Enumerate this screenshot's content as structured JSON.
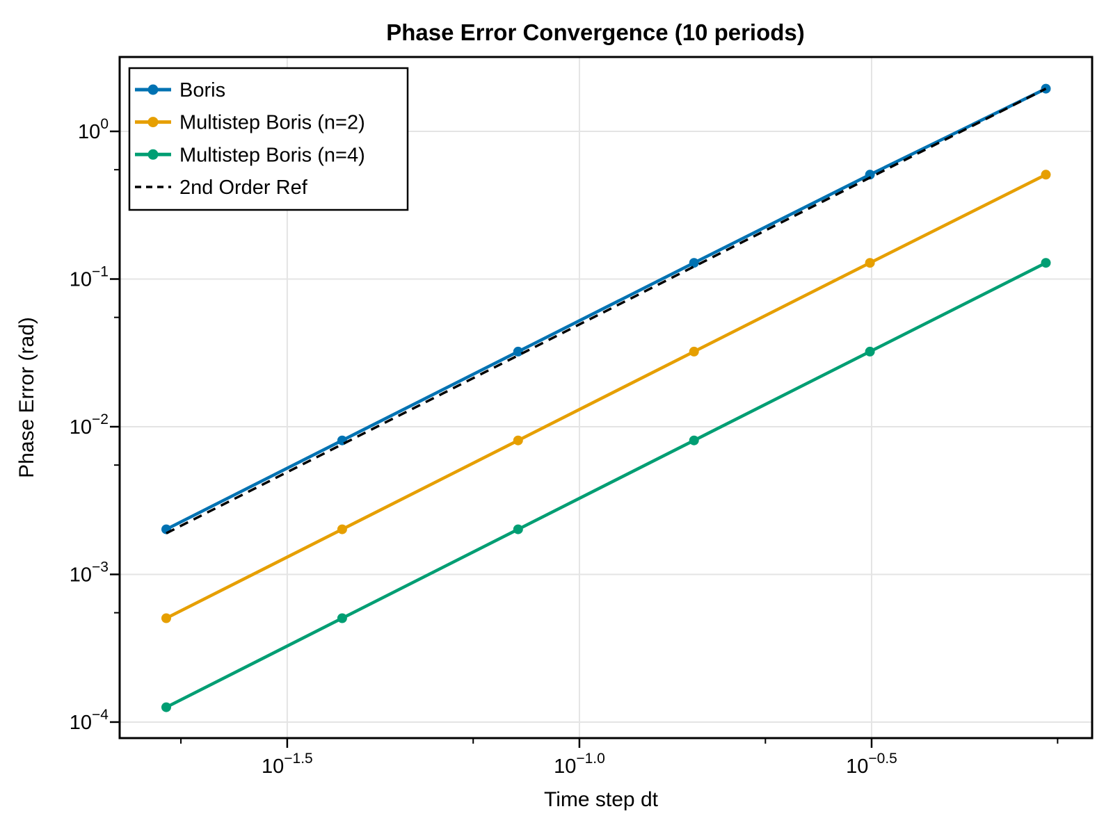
{
  "chart_data": {
    "type": "line",
    "title": "Phase Error Convergence (10 periods)",
    "xlabel": "Time step dt",
    "ylabel": "Phase Error (rad)",
    "x_scale": "log10",
    "y_scale": "log10",
    "xlim": [
      0.01634,
      0.754
    ],
    "ylim": [
      7.79e-05,
      3.189
    ],
    "grid": "major-only",
    "legend_position": "top-left",
    "background_color": "#ffffff",
    "gridline_color": "#e4e4e4",
    "x_ticks": [
      {
        "value": 0.0316228,
        "exponent": "-1.5"
      },
      {
        "value": 0.1,
        "exponent": "-1.0"
      },
      {
        "value": 0.316228,
        "exponent": "-0.5"
      }
    ],
    "x_minor_ticks": [
      0.0208,
      0.0658,
      0.2081,
      0.6581
    ],
    "y_ticks": [
      {
        "value": 1,
        "exponent": "0"
      },
      {
        "value": 0.1,
        "exponent": "-1"
      },
      {
        "value": 0.01,
        "exponent": "-2"
      },
      {
        "value": 0.001,
        "exponent": "-3"
      },
      {
        "value": 0.0001,
        "exponent": "-4"
      }
    ],
    "y_minor_ticks": [
      0.55,
      0.055,
      0.0055,
      0.00055
    ],
    "x": [
      0.019635,
      0.03927,
      0.07854,
      0.15708,
      0.31416,
      0.62832
    ],
    "series": [
      {
        "name": "Boris",
        "color": "#0072B2",
        "line": "solid",
        "marker": "circle",
        "values": [
          0.002019,
          0.008073,
          0.032268,
          0.12872,
          0.50914,
          1.9448
        ]
      },
      {
        "name": "Multistep Boris (n=2)",
        "color": "#E69F00",
        "line": "solid",
        "marker": "circle",
        "values": [
          0.000505,
          0.002019,
          0.008073,
          0.032268,
          0.12872,
          0.50914
        ]
      },
      {
        "name": "Multistep Boris (n=4)",
        "color": "#009E73",
        "line": "solid",
        "marker": "circle",
        "values": [
          0.000126,
          0.000505,
          0.002019,
          0.008073,
          0.032268,
          0.12872
        ]
      },
      {
        "name": "2nd Order Ref",
        "color": "#000000",
        "line": "dashed",
        "marker": "none",
        "values": [
          0.001899,
          0.007597,
          0.030388,
          0.12155,
          0.4862,
          1.9448
        ]
      }
    ]
  }
}
